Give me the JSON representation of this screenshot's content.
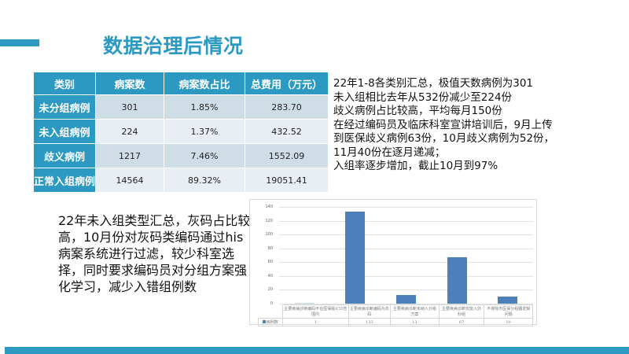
{
  "title": "数据治理后情况",
  "table": {
    "headers": [
      "类别",
      "病案数",
      "病案数占比",
      "总费用（万元）"
    ],
    "rows": [
      {
        "category": "未分组病例",
        "count": "301",
        "ratio": "1.85%",
        "cost": "283.70"
      },
      {
        "category": "未入组病例",
        "count": "224",
        "ratio": "1.37%",
        "cost": "432.52"
      },
      {
        "category": "歧义病例",
        "count": "1217",
        "ratio": "7.46%",
        "cost": "1552.09"
      },
      {
        "category": "正常入组病例",
        "count": "14564",
        "ratio": "89.32%",
        "cost": "19051.41"
      }
    ]
  },
  "notes_right": [
    "22年1-8各类别汇总，极值天数病例为301",
    "未入组相比去年从532份减少至224份",
    "歧义病例占比较高，平均每月150份",
    "在经过编码员及临床科室宣讲培训后，9月上传",
    "到医保歧义病例63份，10月歧义病例为52份，",
    "11月40份在逐月递减；",
    "入组率逐步增加，截止10月到97%"
  ],
  "notes_left": "22年未入组类型汇总，灰码占比较高，10月份对灰码类编码通过his病案系统进行过滤，较少科室选择，同时要求编码员对分组方案强化学习，减少入错组例数",
  "colors": {
    "accent": "#2b99c1",
    "bar": "#4e7fbd",
    "row_odd": "#cfdde6",
    "row_even": "#e8eef3"
  },
  "chart_data": {
    "type": "bar",
    "title": "",
    "categories": [
      "主要疾病诊断编码不在医保版ICD范围内",
      "主要疾病诊断编码为灰码",
      "主要疾病诊断未纳入分组方案",
      "主要疾病诊断仅能入外科组",
      "不排除市医保分组器逻辑问题"
    ],
    "series": [
      {
        "name": "病例数",
        "values": [
          1,
          133,
          13,
          67,
          10
        ]
      }
    ],
    "yticks": [
      "0",
      "20",
      "40",
      "60",
      "80",
      "100",
      "120",
      "140"
    ],
    "ylim": [
      0,
      140
    ],
    "xlabel": "",
    "ylabel": "",
    "grid": true,
    "legend": "data-table"
  }
}
